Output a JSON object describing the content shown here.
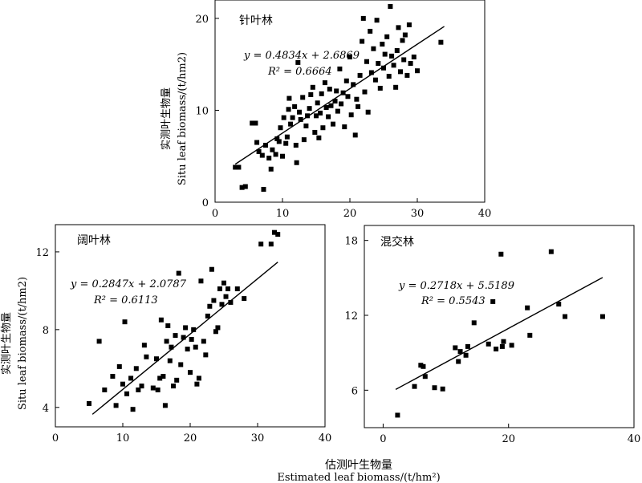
{
  "figure": {
    "xlabel_cn": "估测叶生物量",
    "xlabel_en": "Estimated leaf biomass/(t/hm²)"
  },
  "chart_data": [
    {
      "type": "scatter",
      "title": "针叶林",
      "xlim": [
        0,
        40
      ],
      "ylim": [
        0,
        22
      ],
      "xticks": [
        0,
        10,
        20,
        30,
        40
      ],
      "yticks": [
        0,
        10,
        20
      ],
      "ylabel_cn": "实测叶生物量",
      "ylabel_en": "Situ leaf biomass/(t/hm2)",
      "equation": "y = 0.4834x + 2.6869",
      "r2": "R² = 0.6664",
      "fit": {
        "slope": 0.4834,
        "intercept": 2.6869,
        "x_range": [
          3,
          34
        ]
      },
      "points": [
        [
          3,
          3.8
        ],
        [
          3.5,
          3.8
        ],
        [
          4,
          1.6
        ],
        [
          4.5,
          1.7
        ],
        [
          5.5,
          8.6
        ],
        [
          6,
          8.6
        ],
        [
          6.2,
          6.5
        ],
        [
          6.5,
          5.5
        ],
        [
          7,
          5.1
        ],
        [
          7.2,
          1.4
        ],
        [
          7.5,
          6.2
        ],
        [
          8,
          4.8
        ],
        [
          8.3,
          3.6
        ],
        [
          8.5,
          5.7
        ],
        [
          9,
          5.2
        ],
        [
          9.2,
          6.9
        ],
        [
          9.5,
          6.6
        ],
        [
          9.7,
          8.1
        ],
        [
          10,
          5
        ],
        [
          10.2,
          9.2
        ],
        [
          10.5,
          6.4
        ],
        [
          10.7,
          7.1
        ],
        [
          10.9,
          10.1
        ],
        [
          11,
          11.3
        ],
        [
          11.2,
          8.5
        ],
        [
          11.5,
          9.2
        ],
        [
          11.8,
          10.4
        ],
        [
          12,
          6.2
        ],
        [
          12.1,
          4.3
        ],
        [
          12.3,
          15.2
        ],
        [
          12.5,
          9.8
        ],
        [
          12.7,
          9
        ],
        [
          13,
          11.4
        ],
        [
          13.2,
          6.8
        ],
        [
          13.5,
          8.3
        ],
        [
          13.7,
          9.4
        ],
        [
          14,
          10.2
        ],
        [
          14.2,
          11.7
        ],
        [
          14.5,
          12.5
        ],
        [
          14.8,
          7.6
        ],
        [
          15,
          9.4
        ],
        [
          15.2,
          10.8
        ],
        [
          15.4,
          7
        ],
        [
          15.6,
          9.7
        ],
        [
          15.8,
          11.8
        ],
        [
          16,
          8.1
        ],
        [
          16.3,
          13
        ],
        [
          16.5,
          10.3
        ],
        [
          16.8,
          9.3
        ],
        [
          17,
          12.3
        ],
        [
          17.2,
          10.5
        ],
        [
          17.5,
          8.5
        ],
        [
          17.8,
          11
        ],
        [
          18,
          12.1
        ],
        [
          18.2,
          9.9
        ],
        [
          18.5,
          14.5
        ],
        [
          18.7,
          10.7
        ],
        [
          19,
          11.9
        ],
        [
          19.2,
          8.2
        ],
        [
          19.5,
          13.2
        ],
        [
          19.7,
          11.5
        ],
        [
          20,
          15.8
        ],
        [
          20.2,
          9.5
        ],
        [
          20.5,
          12.8
        ],
        [
          20.8,
          7.3
        ],
        [
          21,
          11.2
        ],
        [
          21.2,
          10.4
        ],
        [
          21.5,
          13.8
        ],
        [
          21.8,
          17.5
        ],
        [
          22,
          20
        ],
        [
          22.2,
          12
        ],
        [
          22.5,
          15.3
        ],
        [
          22.7,
          9.8
        ],
        [
          23,
          18.6
        ],
        [
          23.2,
          14.1
        ],
        [
          23.5,
          16.7
        ],
        [
          23.8,
          13.3
        ],
        [
          24,
          19.8
        ],
        [
          24.2,
          15.1
        ],
        [
          24.5,
          12.4
        ],
        [
          24.8,
          17.2
        ],
        [
          25,
          14.6
        ],
        [
          25.2,
          16.1
        ],
        [
          25.5,
          18
        ],
        [
          25.8,
          13.7
        ],
        [
          26,
          21.3
        ],
        [
          26.2,
          15.9
        ],
        [
          26.5,
          14.9
        ],
        [
          26.8,
          12.5
        ],
        [
          27,
          16.5
        ],
        [
          27.2,
          19
        ],
        [
          27.5,
          14.2
        ],
        [
          27.8,
          17.6
        ],
        [
          28,
          15.5
        ],
        [
          28.2,
          18.2
        ],
        [
          28.5,
          13.8
        ],
        [
          28.8,
          19.3
        ],
        [
          29,
          15.1
        ],
        [
          29.5,
          15.8
        ],
        [
          30,
          14.3
        ],
        [
          33.5,
          17.4
        ]
      ]
    },
    {
      "type": "scatter",
      "title": "阔叶林",
      "xlim": [
        0,
        40
      ],
      "ylim": [
        3,
        13.4
      ],
      "xticks": [
        0,
        10,
        20,
        30,
        40
      ],
      "yticks": [
        4,
        8,
        12
      ],
      "ylabel_cn": "实测叶生物量",
      "ylabel_en": "Situ leaf biomass/(t/hm2)",
      "equation": "y = 0.2847x + 2.0787",
      "r2": "R² = 0.6113",
      "fit": {
        "slope": 0.2847,
        "intercept": 2.0787,
        "x_range": [
          5.5,
          33
        ]
      },
      "points": [
        [
          5,
          4.2
        ],
        [
          6.5,
          7.4
        ],
        [
          7.3,
          4.9
        ],
        [
          8.5,
          5.6
        ],
        [
          9,
          4.1
        ],
        [
          9.5,
          6.1
        ],
        [
          10,
          5.2
        ],
        [
          10.3,
          8.4
        ],
        [
          10.6,
          4.7
        ],
        [
          11.2,
          5.5
        ],
        [
          11.5,
          3.9
        ],
        [
          12,
          6
        ],
        [
          12.3,
          4.9
        ],
        [
          12.8,
          5.1
        ],
        [
          13.2,
          7.2
        ],
        [
          13.5,
          6.6
        ],
        [
          14.5,
          5
        ],
        [
          15,
          6.5
        ],
        [
          15.2,
          4.9
        ],
        [
          15.5,
          5.5
        ],
        [
          15.7,
          8.5
        ],
        [
          16,
          5.6
        ],
        [
          16.3,
          4.1
        ],
        [
          16.5,
          7.4
        ],
        [
          16.7,
          8.2
        ],
        [
          17,
          6.4
        ],
        [
          17.2,
          7.1
        ],
        [
          17.5,
          5.1
        ],
        [
          17.8,
          7.7
        ],
        [
          18,
          5.4
        ],
        [
          18.3,
          10.9
        ],
        [
          18.6,
          6.2
        ],
        [
          19,
          7.6
        ],
        [
          19.3,
          8.1
        ],
        [
          19.6,
          7
        ],
        [
          20,
          5.8
        ],
        [
          20.2,
          7.5
        ],
        [
          20.5,
          8
        ],
        [
          20.8,
          7.1
        ],
        [
          21,
          5.2
        ],
        [
          21.3,
          5.5
        ],
        [
          21.6,
          10.5
        ],
        [
          22,
          7.4
        ],
        [
          22.3,
          6.7
        ],
        [
          22.6,
          8.7
        ],
        [
          22.9,
          9.2
        ],
        [
          23.2,
          11.1
        ],
        [
          23.5,
          9.5
        ],
        [
          23.8,
          7.9
        ],
        [
          24.1,
          8.1
        ],
        [
          24.4,
          10.1
        ],
        [
          24.7,
          9.3
        ],
        [
          25,
          10.4
        ],
        [
          25.3,
          9.7
        ],
        [
          25.6,
          10.1
        ],
        [
          26,
          9.4
        ],
        [
          27,
          10.1
        ],
        [
          28,
          9.6
        ],
        [
          30.5,
          12.4
        ],
        [
          32,
          12.4
        ],
        [
          32.5,
          13
        ],
        [
          33,
          12.9
        ]
      ]
    },
    {
      "type": "scatter",
      "title": "混交林",
      "xlim": [
        -3,
        40
      ],
      "ylim": [
        3,
        19.2
      ],
      "xticks": [
        0,
        20,
        40
      ],
      "yticks": [
        6,
        12,
        18
      ],
      "equation": "y = 0.2718x + 5.5189",
      "r2": "R² = 0.5543",
      "fit": {
        "slope": 0.2718,
        "intercept": 5.5189,
        "x_range": [
          2,
          35
        ]
      },
      "points": [
        [
          2.3,
          4
        ],
        [
          5,
          6.3
        ],
        [
          6,
          8
        ],
        [
          6.4,
          7.9
        ],
        [
          6.7,
          7.1
        ],
        [
          8.2,
          6.2
        ],
        [
          9.5,
          6.1
        ],
        [
          11.5,
          9.4
        ],
        [
          12,
          8.3
        ],
        [
          12.3,
          9.1
        ],
        [
          13.2,
          8.8
        ],
        [
          13.5,
          9.5
        ],
        [
          14.5,
          11.4
        ],
        [
          16.8,
          9.7
        ],
        [
          17.5,
          13.1
        ],
        [
          18,
          9.3
        ],
        [
          18.8,
          16.9
        ],
        [
          19,
          9.5
        ],
        [
          19.2,
          9.9
        ],
        [
          20.5,
          9.6
        ],
        [
          23,
          12.6
        ],
        [
          23.4,
          10.4
        ],
        [
          26.8,
          17.1
        ],
        [
          28,
          12.9
        ],
        [
          29,
          11.9
        ],
        [
          35,
          11.9
        ]
      ]
    }
  ]
}
